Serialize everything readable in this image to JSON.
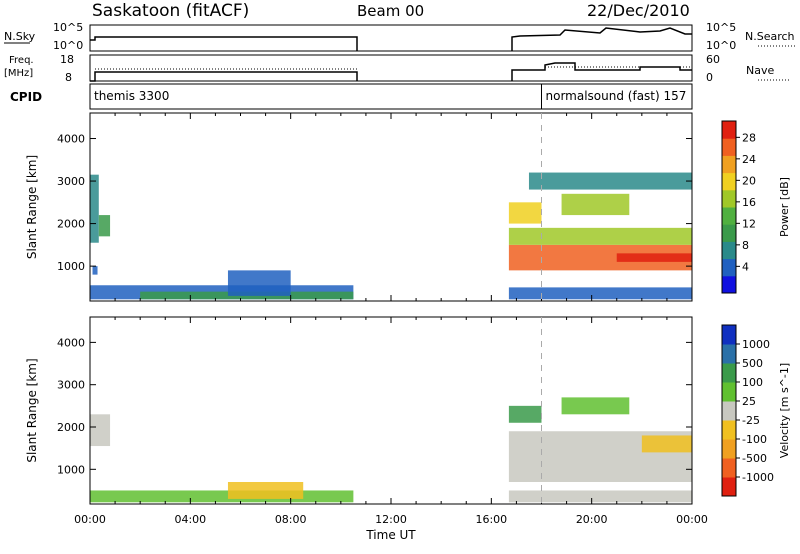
{
  "header": {
    "radar": "Saskatoon (fitACF)",
    "beam": "Beam 00",
    "date": "22/Dec/2010"
  },
  "strip_labels": {
    "nsky": "N.Sky",
    "nsky_top": "10^5",
    "nsky_bottom": "10^0",
    "nsky_right_top": "10^5",
    "nsky_right_bottom": "10^0",
    "nsearch": "N.Search",
    "freq_line1": "Freq.",
    "freq_line2": "[MHz]",
    "freq_top": "18",
    "freq_bottom": "8",
    "nave_top": "60",
    "nave_bottom": "0",
    "nave": "Nave",
    "cpid": "CPID"
  },
  "cpid_segments": [
    {
      "label": "themis 3300",
      "start": 0.0
    },
    {
      "label": "normalsound (fast) 157",
      "start": 18.0
    }
  ],
  "chart_data": [
    {
      "type": "heatmap",
      "name": "power",
      "ylabel": "Slant Range [km]",
      "ylim": [
        180,
        4600
      ],
      "yticks": [
        1000,
        2000,
        3000,
        4000
      ],
      "xlim": [
        0,
        24
      ],
      "colorbar": {
        "label": "Power [dB]",
        "ticks": [
          "4",
          "8",
          "12",
          "16",
          "20",
          "24",
          "28"
        ],
        "colors": [
          "#1010e0",
          "#2060c0",
          "#2a8a8a",
          "#3a9a4a",
          "#50b040",
          "#a0c828",
          "#f0d020",
          "#f0a020",
          "#f06020",
          "#e02010"
        ]
      },
      "blocks": [
        {
          "t0": 0.0,
          "t1": 0.35,
          "r0": 1550,
          "r1": 3150,
          "c": 2
        },
        {
          "t0": 0.35,
          "t1": 0.8,
          "r0": 1700,
          "r1": 2200,
          "c": 3
        },
        {
          "t0": 0.1,
          "t1": 0.3,
          "r0": 800,
          "r1": 1000,
          "c": 1
        },
        {
          "t0": 0.0,
          "t1": 10.5,
          "r0": 220,
          "r1": 550,
          "c": 1
        },
        {
          "t0": 2.0,
          "t1": 10.5,
          "r0": 220,
          "r1": 400,
          "c": 3
        },
        {
          "t0": 5.5,
          "t1": 8.0,
          "r0": 300,
          "r1": 900,
          "c": 1
        },
        {
          "t0": 16.7,
          "t1": 24.0,
          "r0": 900,
          "r1": 1500,
          "c": 8
        },
        {
          "t0": 16.7,
          "t1": 24.0,
          "r0": 1500,
          "r1": 1900,
          "c": 5
        },
        {
          "t0": 16.7,
          "t1": 18.0,
          "r0": 2000,
          "r1": 2500,
          "c": 6
        },
        {
          "t0": 18.8,
          "t1": 21.5,
          "r0": 2200,
          "r1": 2700,
          "c": 5
        },
        {
          "t0": 21.0,
          "t1": 24.0,
          "r0": 1100,
          "r1": 1300,
          "c": 9
        },
        {
          "t0": 16.7,
          "t1": 24.0,
          "r0": 220,
          "r1": 500,
          "c": 1
        },
        {
          "t0": 17.5,
          "t1": 24.0,
          "r0": 2800,
          "r1": 3200,
          "c": 2
        }
      ]
    },
    {
      "type": "heatmap",
      "name": "velocity",
      "ylabel": "Slant Range [km]",
      "ylim": [
        180,
        4600
      ],
      "yticks": [
        1000,
        2000,
        3000,
        4000
      ],
      "xlim": [
        0,
        24
      ],
      "xticks": [
        "00:00",
        "04:00",
        "08:00",
        "12:00",
        "16:00",
        "20:00",
        "00:00"
      ],
      "xlabel": "Time UT",
      "colorbar": {
        "label": "Velocity [m s^-1]",
        "ticks": [
          "1000",
          "500",
          "100",
          "25",
          "-25",
          "-100",
          "-500",
          "-1000"
        ],
        "colors": [
          "#1030c0",
          "#2a70a8",
          "#3a9a4a",
          "#60c030",
          "#c8c8c0",
          "#f0c020",
          "#f0a020",
          "#f06020",
          "#e02010"
        ]
      },
      "blocks": [
        {
          "t0": 0.0,
          "t1": 0.8,
          "r0": 1550,
          "r1": 2300,
          "c": 4
        },
        {
          "t0": 0.0,
          "t1": 10.5,
          "r0": 220,
          "r1": 500,
          "c": 3
        },
        {
          "t0": 5.5,
          "t1": 8.5,
          "r0": 300,
          "r1": 700,
          "c": 5
        },
        {
          "t0": 16.7,
          "t1": 24.0,
          "r0": 700,
          "r1": 1900,
          "c": 4
        },
        {
          "t0": 16.7,
          "t1": 18.0,
          "r0": 2100,
          "r1": 2500,
          "c": 2
        },
        {
          "t0": 18.8,
          "t1": 21.5,
          "r0": 2300,
          "r1": 2700,
          "c": 3
        },
        {
          "t0": 22.0,
          "t1": 24.0,
          "r0": 1400,
          "r1": 1800,
          "c": 5
        },
        {
          "t0": 16.7,
          "t1": 24.0,
          "r0": 220,
          "r1": 500,
          "c": 4
        }
      ]
    }
  ]
}
